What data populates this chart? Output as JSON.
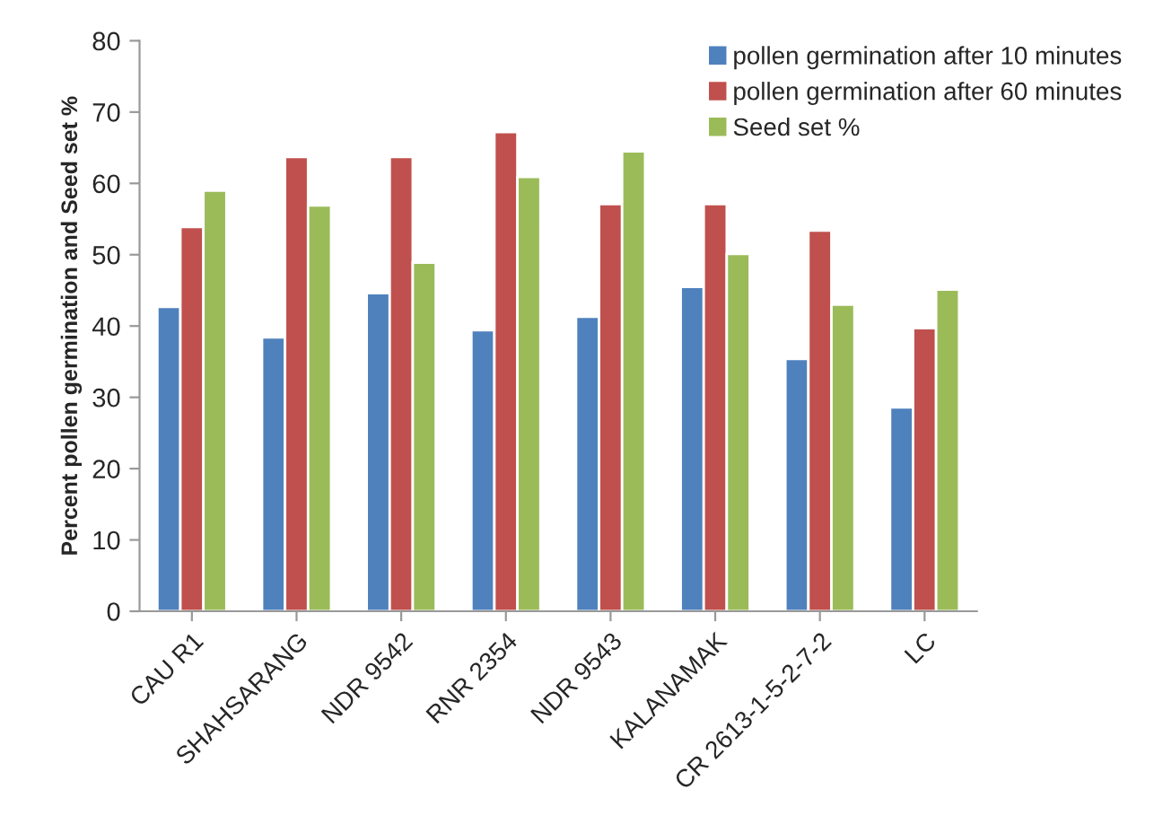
{
  "chart_data": {
    "type": "bar",
    "ylabel": "Percent pollen germination and Seed set %",
    "categories": [
      "CAU R1",
      "SHAHSARANG",
      "NDR 9542",
      "RNR 2354",
      "NDR 9543",
      "KALANAMAK",
      "CR 2613-1-5-2-7-2",
      "LC"
    ],
    "series": [
      {
        "name": "pollen germination after 10 minutes",
        "color": "#4f81bd",
        "values": [
          42.7,
          38.4,
          44.6,
          39.4,
          41.3,
          45.5,
          35.4,
          28.6
        ]
      },
      {
        "name": "pollen germination after 60 minutes",
        "color": "#c0504d",
        "values": [
          53.9,
          63.7,
          63.7,
          67.2,
          57.1,
          57.1,
          53.4,
          39.7
        ]
      },
      {
        "name": "Seed set %",
        "color": "#9bbb59",
        "values": [
          59.0,
          56.9,
          48.9,
          60.9,
          64.5,
          50.1,
          43.0,
          45.1
        ]
      }
    ],
    "ylim": [
      0,
      80
    ],
    "yticks": [
      0,
      10,
      20,
      30,
      40,
      50,
      60,
      70,
      80
    ],
    "grid": false,
    "legend": "top right"
  }
}
